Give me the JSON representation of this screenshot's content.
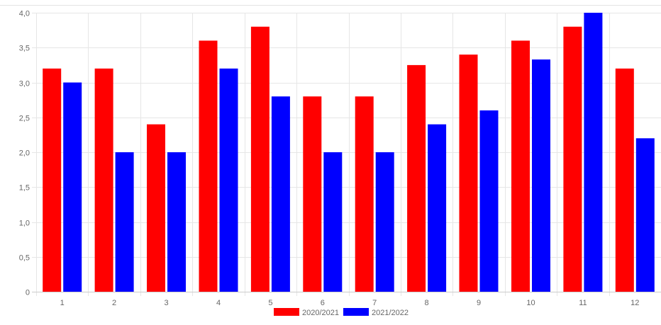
{
  "chart_data": {
    "type": "bar",
    "categories": [
      "1",
      "2",
      "3",
      "4",
      "5",
      "6",
      "7",
      "8",
      "9",
      "10",
      "11",
      "12"
    ],
    "series": [
      {
        "name": "2020/2021",
        "color": "#ff0000",
        "values": [
          3.2,
          3.2,
          2.4,
          3.6,
          3.8,
          2.8,
          2.8,
          3.25,
          3.4,
          3.6,
          3.8,
          3.2
        ]
      },
      {
        "name": "2021/2022",
        "color": "#0000ff",
        "values": [
          3.0,
          2.0,
          2.0,
          3.2,
          2.8,
          2.0,
          2.0,
          2.4,
          2.6,
          3.33,
          4.0,
          2.2
        ]
      }
    ],
    "ylim": [
      0,
      4
    ],
    "yticks": [
      {
        "value": 0,
        "label": "0"
      },
      {
        "value": 0.5,
        "label": "0,5"
      },
      {
        "value": 1.0,
        "label": "1,0"
      },
      {
        "value": 1.5,
        "label": "1,5"
      },
      {
        "value": 2.0,
        "label": "2,0"
      },
      {
        "value": 2.5,
        "label": "2,5"
      },
      {
        "value": 3.0,
        "label": "3,0"
      },
      {
        "value": 3.5,
        "label": "3,5"
      },
      {
        "value": 4.0,
        "label": "4,0"
      }
    ],
    "grid": true,
    "legend": "bottom"
  }
}
